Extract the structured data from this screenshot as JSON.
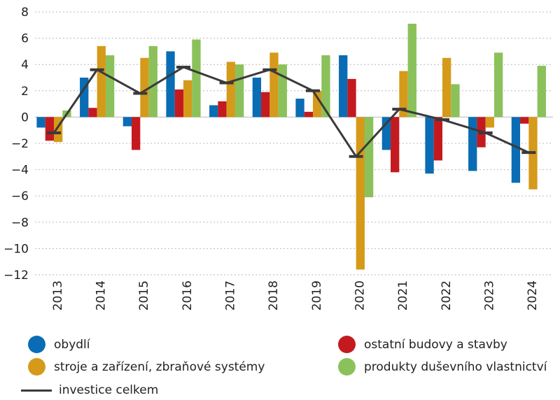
{
  "chart_data": {
    "type": "bar",
    "title": "",
    "xlabel": "",
    "ylabel": "",
    "ylim": [
      -12,
      8
    ],
    "yticks": [
      "8",
      "6",
      "4",
      "2",
      "0",
      "−2",
      "−4",
      "−6",
      "−8",
      "−10",
      "−12"
    ],
    "yticks_values": [
      8,
      6,
      4,
      2,
      0,
      -2,
      -4,
      -6,
      -8,
      -10,
      -12
    ],
    "categories": [
      "2013",
      "2014",
      "2015",
      "2016",
      "2017",
      "2018",
      "2019",
      "2020",
      "2021",
      "2022",
      "2023",
      "2024"
    ],
    "series": [
      {
        "name": "obydlí",
        "type": "bar",
        "color": "#0a6cb4",
        "values": [
          -0.8,
          3.0,
          -0.7,
          5.0,
          0.9,
          3.0,
          1.4,
          4.7,
          -2.5,
          -4.3,
          -4.1,
          -5.0
        ]
      },
      {
        "name": "ostatní budovy a stavby",
        "type": "bar",
        "color": "#c41a1f",
        "values": [
          -1.8,
          0.7,
          -2.5,
          2.1,
          1.2,
          1.9,
          0.4,
          2.9,
          -4.2,
          -3.3,
          -2.3,
          -0.5
        ]
      },
      {
        "name": "stroje a zařízení, zbraňové systémy",
        "type": "bar",
        "color": "#d59a1a",
        "values": [
          -1.9,
          5.4,
          4.5,
          2.8,
          4.2,
          4.9,
          2.0,
          -11.6,
          3.5,
          4.5,
          -0.8,
          -5.5
        ]
      },
      {
        "name": "produkty duševního vlastnictví",
        "type": "bar",
        "color": "#8bc15a",
        "values": [
          0.5,
          4.7,
          5.4,
          5.9,
          4.0,
          4.0,
          4.7,
          -6.1,
          7.1,
          2.5,
          4.9,
          3.9
        ]
      },
      {
        "name": "investice celkem",
        "type": "line",
        "color": "#3a3a3a",
        "values": [
          -1.2,
          3.6,
          1.8,
          3.8,
          2.6,
          3.6,
          2.0,
          -3.0,
          0.6,
          -0.2,
          -1.2,
          -2.7
        ]
      }
    ],
    "legend_position": "bottom",
    "grid": true
  },
  "legend": [
    {
      "label": "obydlí",
      "color": "#0a6cb4",
      "marker": "dot"
    },
    {
      "label": "ostatní budovy a stavby",
      "color": "#c41a1f",
      "marker": "dot"
    },
    {
      "label": "stroje a zařízení, zbraňové systémy",
      "color": "#d59a1a",
      "marker": "dot"
    },
    {
      "label": "produkty duševního vlastnictví",
      "color": "#8bc15a",
      "marker": "dot"
    },
    {
      "label": "investice celkem",
      "color": "#3a3a3a",
      "marker": "dash"
    }
  ]
}
